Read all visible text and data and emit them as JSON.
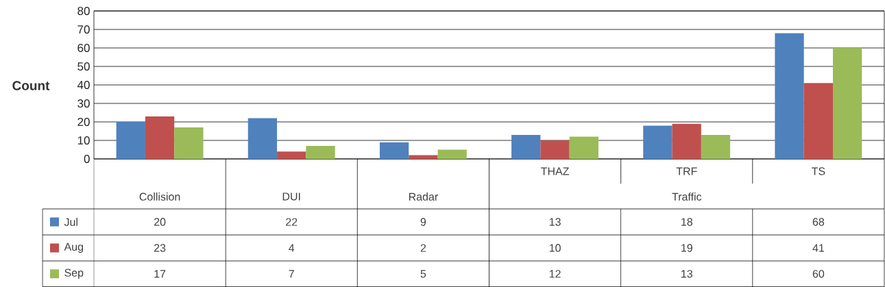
{
  "chart_data": {
    "type": "bar",
    "ylabel": "Count",
    "categories": [
      "Collision",
      "DUI",
      "Radar",
      "THAZ",
      "TRF",
      "TS"
    ],
    "series": [
      {
        "name": "Jul",
        "color": "#4f81bd",
        "values": [
          20,
          22,
          9,
          13,
          18,
          68
        ]
      },
      {
        "name": "Aug",
        "color": "#c0504d",
        "values": [
          23,
          4,
          2,
          10,
          19,
          41
        ]
      },
      {
        "name": "Sep",
        "color": "#9bbb59",
        "values": [
          17,
          7,
          5,
          12,
          13,
          60
        ]
      }
    ],
    "ylim": [
      0,
      80
    ],
    "yticks": [
      0,
      10,
      20,
      30,
      40,
      50,
      60,
      70,
      80
    ],
    "grid": "y",
    "data_labels": true,
    "legend": "bottom left",
    "annotations": [
      "Traffic"
    ]
  }
}
